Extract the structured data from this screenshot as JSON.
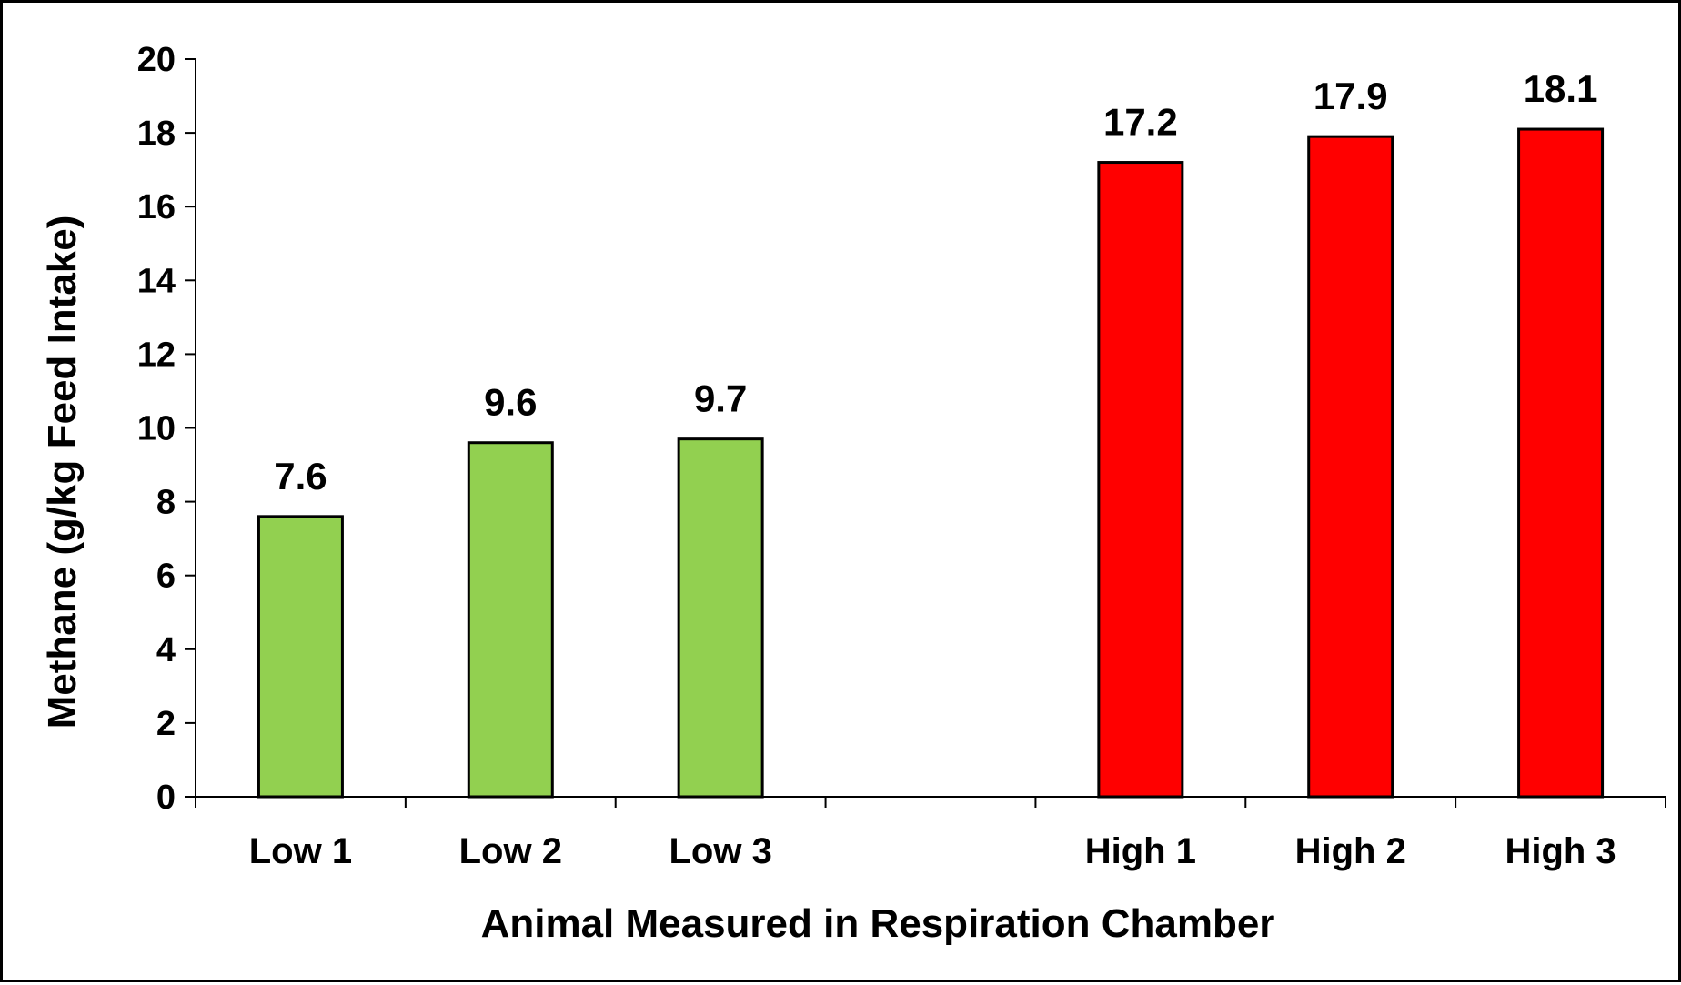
{
  "chart_data": {
    "type": "bar",
    "title": "",
    "xlabel": "Animal Measured in Respiration Chamber",
    "ylabel": "Methane (g/kg Feed Intake)",
    "ylim": [
      0,
      20
    ],
    "yticks": [
      0,
      2,
      4,
      6,
      8,
      10,
      12,
      14,
      16,
      18,
      20
    ],
    "categories": [
      "Low 1",
      "Low 2",
      "Low 3",
      "",
      "High 1",
      "High 2",
      "High 3"
    ],
    "values": [
      7.6,
      9.6,
      9.7,
      null,
      17.2,
      17.9,
      18.1
    ],
    "data_labels": [
      "7.6",
      "9.6",
      "9.7",
      "",
      "17.2",
      "17.9",
      "18.1"
    ],
    "bar_colors": [
      "#92d050",
      "#92d050",
      "#92d050",
      "",
      "#ff0000",
      "#ff0000",
      "#ff0000"
    ],
    "grid": false,
    "legend": "none"
  }
}
